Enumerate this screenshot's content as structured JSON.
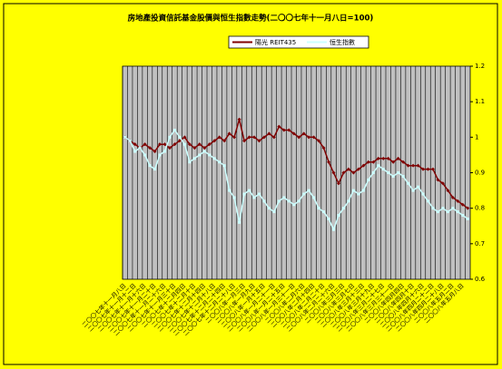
{
  "chart_data": {
    "type": "line",
    "title": "房地產投資信託基金股價與恒生指數走勢(二〇〇七年十一月八日=100)",
    "categories": [
      "二〇〇七年十一月八日",
      null,
      "二〇〇七年十一月十二日",
      null,
      "二〇〇七年十一月十六日",
      null,
      "二〇〇七年十一月二十日",
      null,
      "二〇〇七年十一月二十六日",
      null,
      "二〇〇七年十一月三十日",
      null,
      "二〇〇七年十二月四日",
      null,
      "二〇〇七年十二月十日",
      null,
      "二〇〇七年十二月十四日",
      null,
      "二〇〇七年十二月十八日",
      null,
      "二〇〇七年十二月二十四日",
      null,
      "二〇〇七年十二月二十八日",
      null,
      "二〇〇八年一月三日",
      null,
      "二〇〇八年一月九日",
      null,
      "二〇〇八年一月十五日",
      null,
      "二〇〇八年一月二十一日",
      null,
      "二〇〇八年一月二十五日",
      null,
      "二〇〇八年一月三十一日",
      null,
      "二〇〇八年二月六日",
      null,
      "二〇〇八年二月十四日",
      null,
      "二〇〇八年二月二十日",
      null,
      "二〇〇八年二月二十六日",
      null,
      "二〇〇八年三月三日",
      null,
      "二〇〇八年三月七日",
      null,
      "二〇〇八年三月十三日",
      null,
      "二〇〇八年三月十九日",
      null,
      "二〇〇八年三月二十七日",
      null,
      "二〇〇八年三月三十一日",
      null,
      "二〇〇八年四月四日",
      null,
      "二〇〇八年四月十日",
      null,
      "二〇〇八年四月十六日",
      null,
      "二〇〇八年四月二十二日",
      null,
      "二〇〇八年四月二十八日",
      null,
      "二〇〇八年五月二日",
      null,
      "二〇〇八年五月八日",
      null
    ],
    "series": [
      {
        "name": "陽光 REIT435",
        "color": "#800000",
        "values": [
          1.0,
          0.99,
          0.98,
          0.97,
          0.98,
          0.97,
          0.96,
          0.98,
          0.98,
          0.97,
          0.98,
          0.99,
          1.0,
          0.98,
          0.97,
          0.98,
          0.97,
          0.98,
          0.99,
          1.0,
          0.99,
          1.01,
          1.0,
          1.05,
          0.99,
          1.0,
          1.0,
          0.99,
          1.0,
          1.01,
          1.0,
          1.03,
          1.02,
          1.02,
          1.01,
          1.0,
          1.01,
          1.0,
          1.0,
          0.99,
          0.97,
          0.93,
          0.9,
          0.87,
          0.9,
          0.91,
          0.9,
          0.91,
          0.92,
          0.93,
          0.93,
          0.94,
          0.94,
          0.94,
          0.93,
          0.94,
          0.93,
          0.92,
          0.92,
          0.92,
          0.91,
          0.91,
          0.91,
          0.88,
          0.87,
          0.85,
          0.83,
          0.82,
          0.81,
          0.8
        ]
      },
      {
        "name": "恒生指數",
        "color": "#ccffff",
        "values": [
          1.0,
          0.99,
          0.96,
          0.97,
          0.95,
          0.92,
          0.91,
          0.95,
          0.96,
          1.0,
          1.02,
          1.0,
          0.98,
          0.93,
          0.94,
          0.95,
          0.96,
          0.95,
          0.94,
          0.93,
          0.92,
          0.85,
          0.83,
          0.76,
          0.84,
          0.85,
          0.83,
          0.84,
          0.82,
          0.8,
          0.79,
          0.82,
          0.83,
          0.82,
          0.81,
          0.82,
          0.84,
          0.85,
          0.83,
          0.8,
          0.79,
          0.77,
          0.74,
          0.78,
          0.8,
          0.82,
          0.85,
          0.84,
          0.85,
          0.88,
          0.9,
          0.92,
          0.91,
          0.9,
          0.89,
          0.9,
          0.89,
          0.87,
          0.85,
          0.86,
          0.84,
          0.82,
          0.8,
          0.79,
          0.8,
          0.79,
          0.8,
          0.79,
          0.78,
          0.77
        ]
      }
    ],
    "ylim": [
      0.6,
      1.2
    ],
    "yticks": [
      0.6,
      0.7,
      0.8,
      0.9,
      1,
      1.1,
      1.2
    ],
    "y_axis_side": "right",
    "grid": true,
    "legend": "top"
  }
}
